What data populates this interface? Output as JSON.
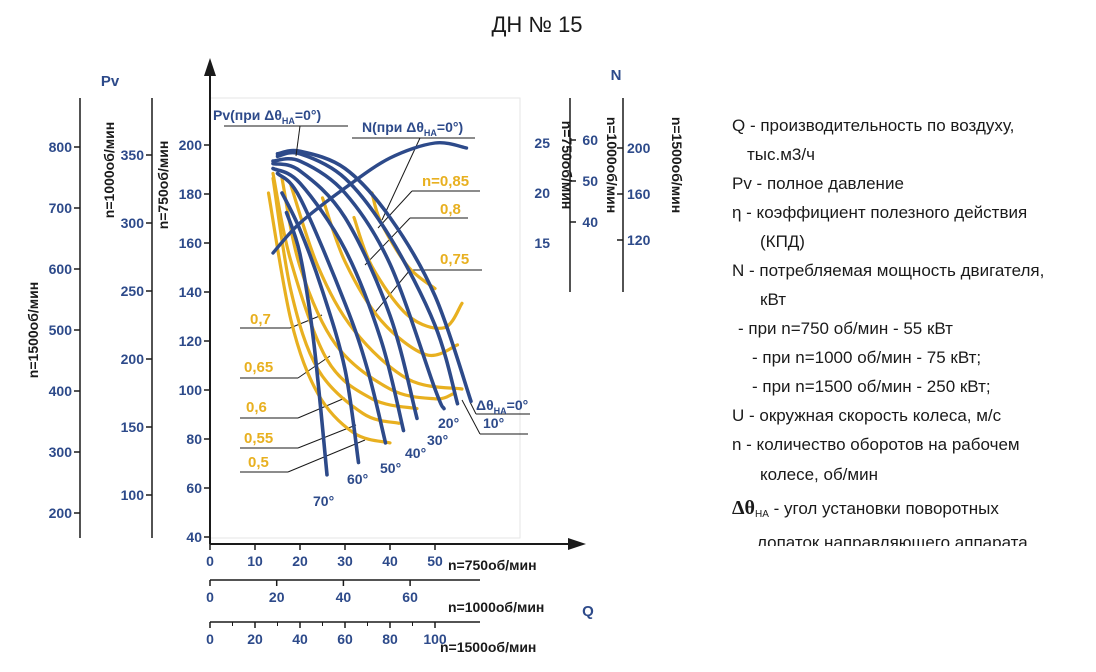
{
  "chart_data": {
    "type": "line",
    "title": "ДН № 15",
    "x_axes": [
      {
        "label": "n=750об/мин",
        "ticks": [
          "0",
          "10",
          "20",
          "30",
          "40",
          "50"
        ]
      },
      {
        "label": "n=1000об/мин",
        "ticks": [
          "0",
          "20",
          "40",
          "60"
        ]
      },
      {
        "label": "n=1500об/мин",
        "ticks": [
          "0",
          "20",
          "40",
          "60",
          "80",
          "100"
        ]
      }
    ],
    "x_name": "Q",
    "y_left_name": "Pv",
    "y_right_name": "N",
    "y_axes_left": [
      {
        "label": "n=1500об/мин",
        "ticks": [
          "800",
          "700",
          "600",
          "500",
          "400",
          "300",
          "200"
        ]
      },
      {
        "label": "n=1000об/мин",
        "ticks": [
          "350",
          "300",
          "250",
          "200",
          "150",
          "100"
        ]
      },
      {
        "label": "n=750об/мин",
        "ticks": [
          "200",
          "180",
          "160",
          "140",
          "120",
          "100",
          "80",
          "60",
          "40"
        ]
      }
    ],
    "y_axes_right": [
      {
        "label": "n=750об/мин",
        "ticks": [
          "25",
          "20",
          "15"
        ]
      },
      {
        "label": "n=1000об/мин",
        "ticks": [
          "60",
          "50",
          "40"
        ]
      },
      {
        "label": "n=1500об/мин",
        "ticks": [
          "200",
          "160",
          "120"
        ]
      }
    ],
    "curve_labels": {
      "pv": "Pv(при Δθ",
      "n": "N(при Δθ",
      "sub": "НА",
      "suffix": "=0°)"
    },
    "efficiency_labels": [
      "n=0,85",
      "0,8",
      "0,75",
      "0,7",
      "0,65",
      "0,6",
      "0,55",
      "0,5"
    ],
    "angle_labels": {
      "zero": "Δθ",
      "zero_sub": "НА",
      "zero_suffix": "=0°",
      "list": [
        "10°",
        "20°",
        "30°",
        "40°",
        "50°",
        "60°",
        "70°"
      ]
    },
    "series": [
      {
        "name": "Δθ=0°",
        "points": [
          [
            15,
            196
          ],
          [
            20,
            197
          ],
          [
            30,
            190
          ],
          [
            40,
            170
          ],
          [
            50,
            138
          ],
          [
            58,
            95
          ]
        ]
      },
      {
        "name": "Δθ=10°",
        "points": [
          [
            15,
            195
          ],
          [
            20,
            196
          ],
          [
            30,
            186
          ],
          [
            40,
            162
          ],
          [
            50,
            126
          ],
          [
            55,
            94
          ]
        ]
      },
      {
        "name": "Δθ=20°",
        "points": [
          [
            14,
            193
          ],
          [
            20,
            193
          ],
          [
            30,
            180
          ],
          [
            40,
            151
          ],
          [
            50,
            100
          ],
          [
            52,
            92
          ]
        ]
      },
      {
        "name": "Δθ=30°",
        "points": [
          [
            14,
            192
          ],
          [
            20,
            189
          ],
          [
            30,
            170
          ],
          [
            40,
            130
          ],
          [
            46,
            88
          ]
        ]
      },
      {
        "name": "Δθ=40°",
        "points": [
          [
            14,
            190
          ],
          [
            20,
            184
          ],
          [
            30,
            157
          ],
          [
            38,
            120
          ],
          [
            43,
            83
          ]
        ]
      },
      {
        "name": "Δθ=50°",
        "points": [
          [
            15,
            188
          ],
          [
            20,
            178
          ],
          [
            30,
            135
          ],
          [
            35,
            108
          ],
          [
            39,
            78
          ]
        ]
      },
      {
        "name": "Δθ=60°",
        "points": [
          [
            16,
            180
          ],
          [
            20,
            165
          ],
          [
            25,
            140
          ],
          [
            30,
            108
          ],
          [
            33,
            70
          ]
        ]
      },
      {
        "name": "Δθ=70°",
        "points": [
          [
            17,
            172
          ],
          [
            20,
            155
          ],
          [
            23,
            120
          ],
          [
            26,
            65
          ]
        ]
      },
      {
        "name": "N(Δθ=0°)",
        "axis": "power",
        "points": [
          [
            14,
            14
          ],
          [
            20,
            17
          ],
          [
            30,
            20.5
          ],
          [
            40,
            23.5
          ],
          [
            50,
            25
          ],
          [
            57,
            24.5
          ]
        ]
      }
    ]
  },
  "legend": {
    "items": [
      "Q - производительность по воздуху,",
      "тыс.м3/ч",
      "Pv - полное давление",
      "η - коэффициент полезного действия",
      "(КПД)",
      "N - потребляемая мощность двигателя,",
      "кВт",
      "- при n=750 об/мин - 55 кВт",
      "- при n=1000 об/мин - 75 кВт;",
      "- при n=1500 об/мин - 250 кВт;",
      "U - окружная скорость колеса, м/с",
      "n - количество оборотов на рабочем",
      "колесе, об/мин",
      "Δθ",
      "НА",
      " - угол  установки поворотных",
      "лопаток направляющего аппарата."
    ]
  }
}
